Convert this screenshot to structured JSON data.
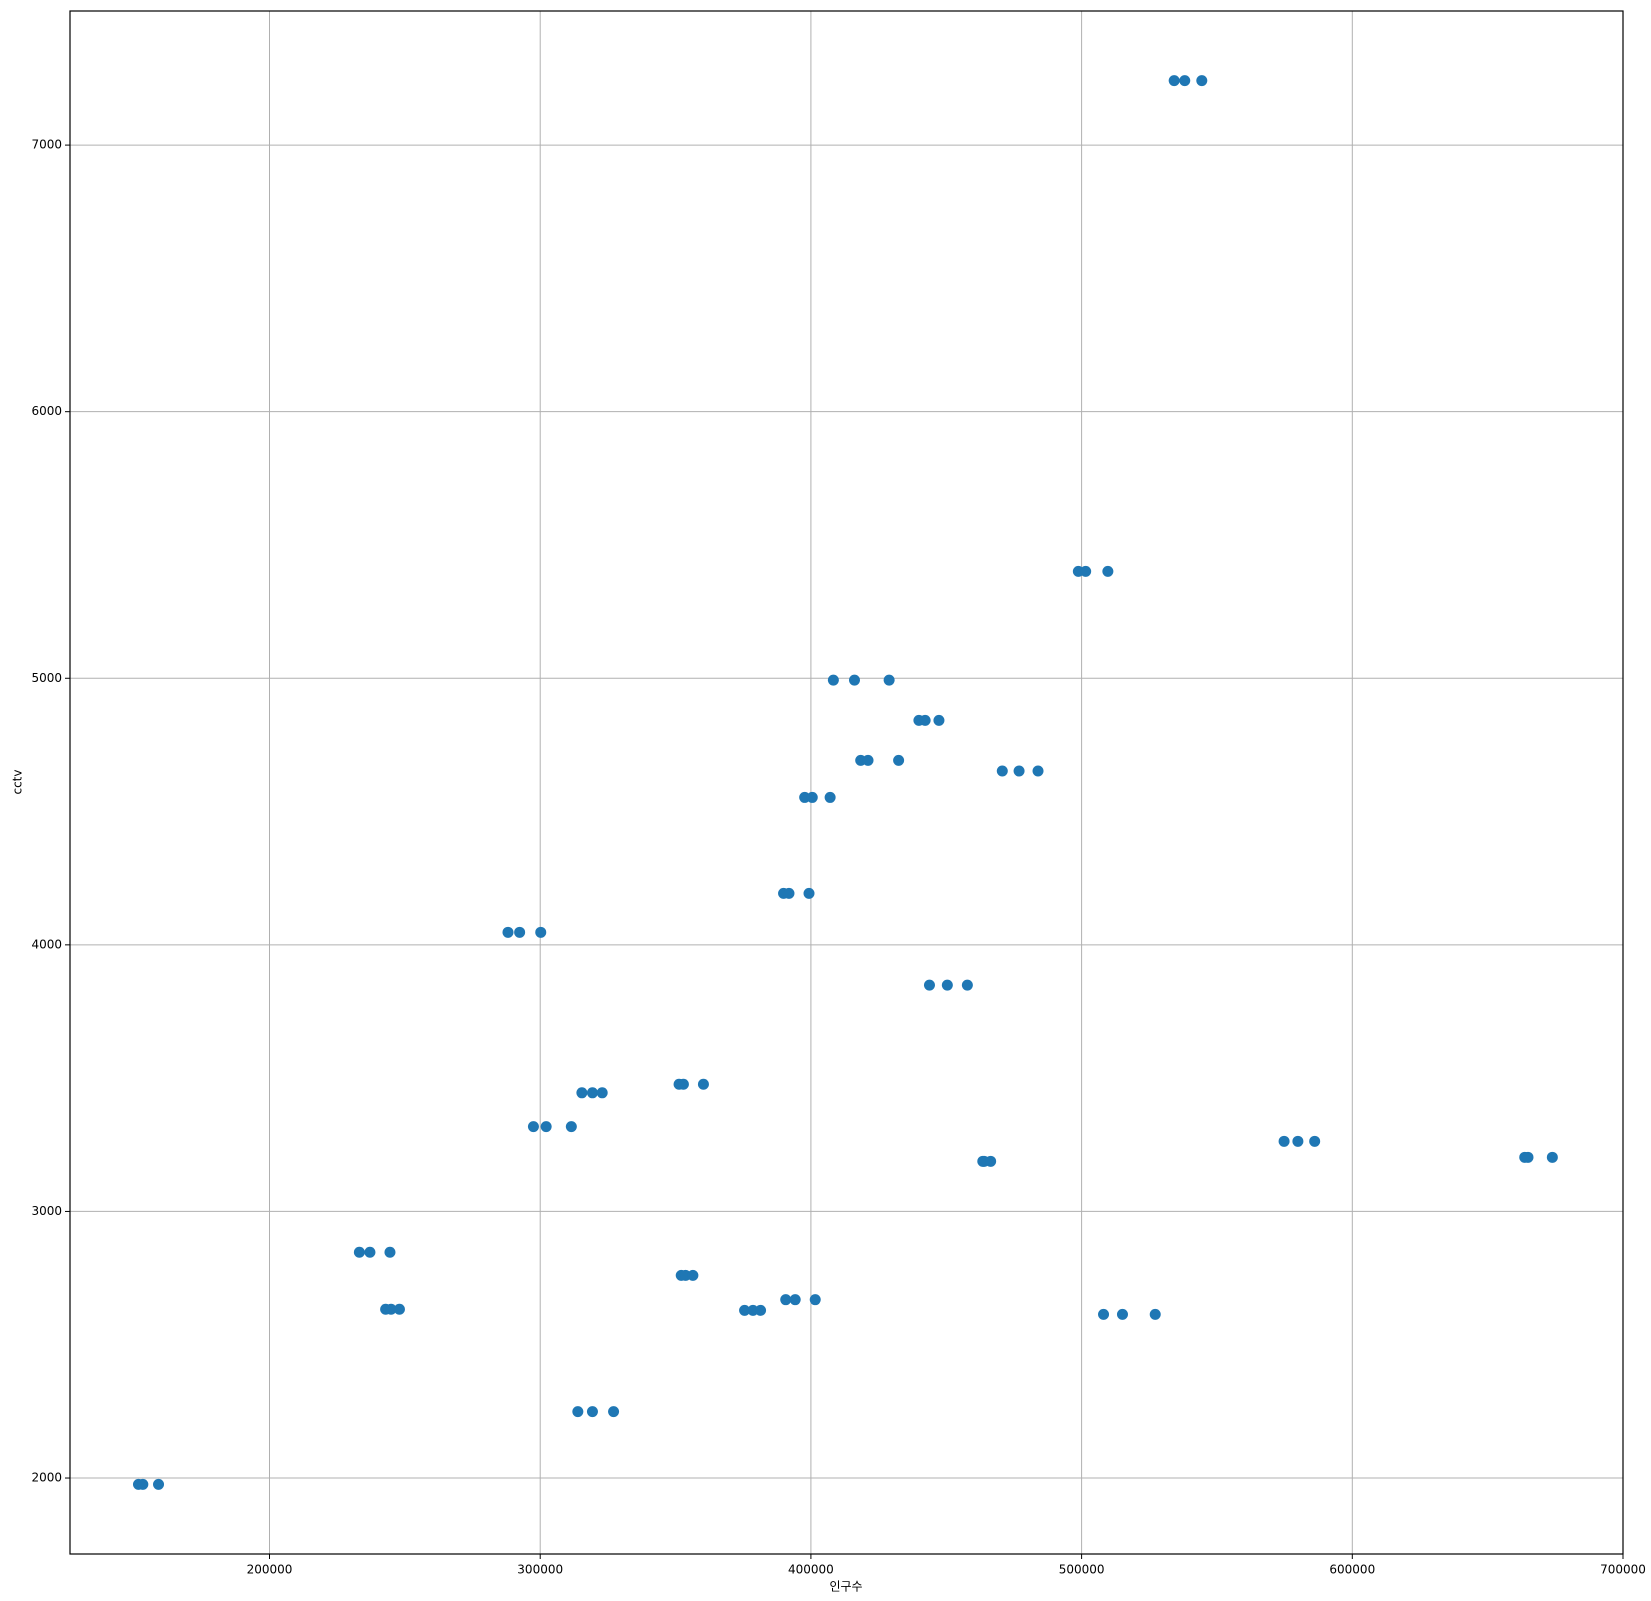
{
  "chart_data": {
    "type": "scatter",
    "xlabel": "인구수",
    "ylabel": "cctv",
    "xlim": [
      126300,
      700000
    ],
    "ylim": [
      1715,
      7503
    ],
    "xticks": [
      200000,
      300000,
      400000,
      500000,
      600000,
      700000
    ],
    "yticks": [
      2000,
      3000,
      4000,
      5000,
      6000,
      7000
    ],
    "grid": true,
    "series": [
      {
        "color": "#1f77b4",
        "x": [
          151600,
          153200,
          159000,
          233200,
          237100,
          244500,
          242900,
          244900,
          248000,
          288100,
          292400,
          300200,
          297500,
          302200,
          311500,
          313900,
          319300,
          327100,
          315400,
          319300,
          322900,
          351300,
          352900,
          360300,
          352100,
          353700,
          356400,
          375500,
          378600,
          381400,
          390700,
          394200,
          401600,
          389900,
          391900,
          399300,
          397700,
          400500,
          407100,
          408300,
          416100,
          428900,
          418400,
          421100,
          432400,
          439900,
          442200,
          447300,
          443800,
          450400,
          457800,
          463500,
          464000,
          466400,
          470700,
          476900,
          483900,
          498800,
          501500,
          509700,
          508100,
          515100,
          527200,
          534200,
          538100,
          544400,
          574800,
          579900,
          586100,
          663700,
          664900,
          673900
        ],
        "values": [
          1976,
          1976,
          1976,
          2847,
          2847,
          2847,
          2633,
          2633,
          2633,
          4047,
          4047,
          4047,
          3318,
          3318,
          3318,
          2249,
          2249,
          2249,
          3445,
          3445,
          3445,
          3477,
          3477,
          3477,
          2760,
          2760,
          2760,
          2629,
          2629,
          2629,
          2669,
          2669,
          2669,
          4193,
          4193,
          4193,
          4553,
          4553,
          4553,
          4993,
          4993,
          4993,
          4692,
          4692,
          4692,
          4842,
          4842,
          4842,
          3849,
          3849,
          3849,
          3188,
          3188,
          3188,
          4652,
          4652,
          4652,
          5401,
          5401,
          5401,
          2614,
          2614,
          2614,
          7242,
          7242,
          7242,
          3263,
          3263,
          3263,
          3203,
          3203,
          3203
        ]
      }
    ]
  }
}
